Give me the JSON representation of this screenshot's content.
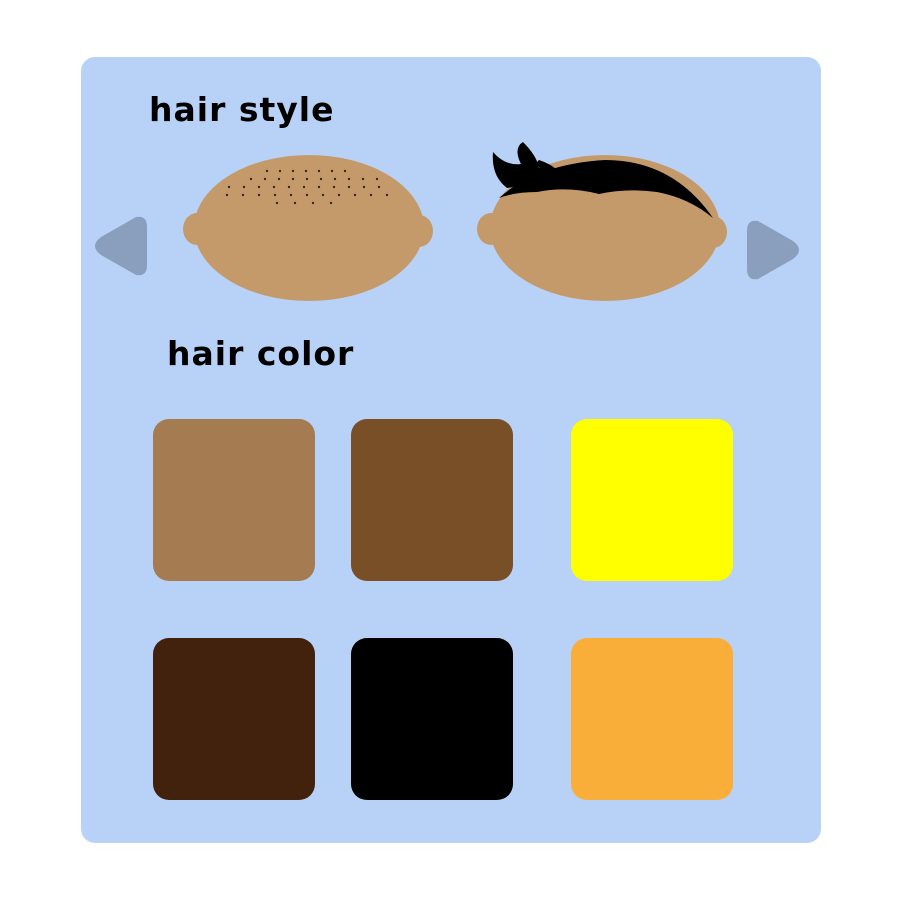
{
  "hair_style": {
    "heading": "hair style",
    "options": [
      {
        "id": "buzz-cut",
        "icon": "bald-head-stubble-icon"
      },
      {
        "id": "swoop",
        "icon": "head-swoop-hair-icon"
      }
    ]
  },
  "hair_color": {
    "heading": "hair color",
    "swatches": [
      {
        "id": "light-brown",
        "color": "#a57b52"
      },
      {
        "id": "medium-brown",
        "color": "#784f27"
      },
      {
        "id": "yellow",
        "color": "#ffff00"
      },
      {
        "id": "dark-brown",
        "color": "#42220d"
      },
      {
        "id": "black",
        "color": "#000000"
      },
      {
        "id": "orange",
        "color": "#f9ae3a"
      }
    ]
  },
  "colors": {
    "panel": "#b8d2f7",
    "arrow": "#8a9fbd",
    "skin": "#c59a6b",
    "stubble": "#3a2a1a",
    "hair": "#000000"
  }
}
